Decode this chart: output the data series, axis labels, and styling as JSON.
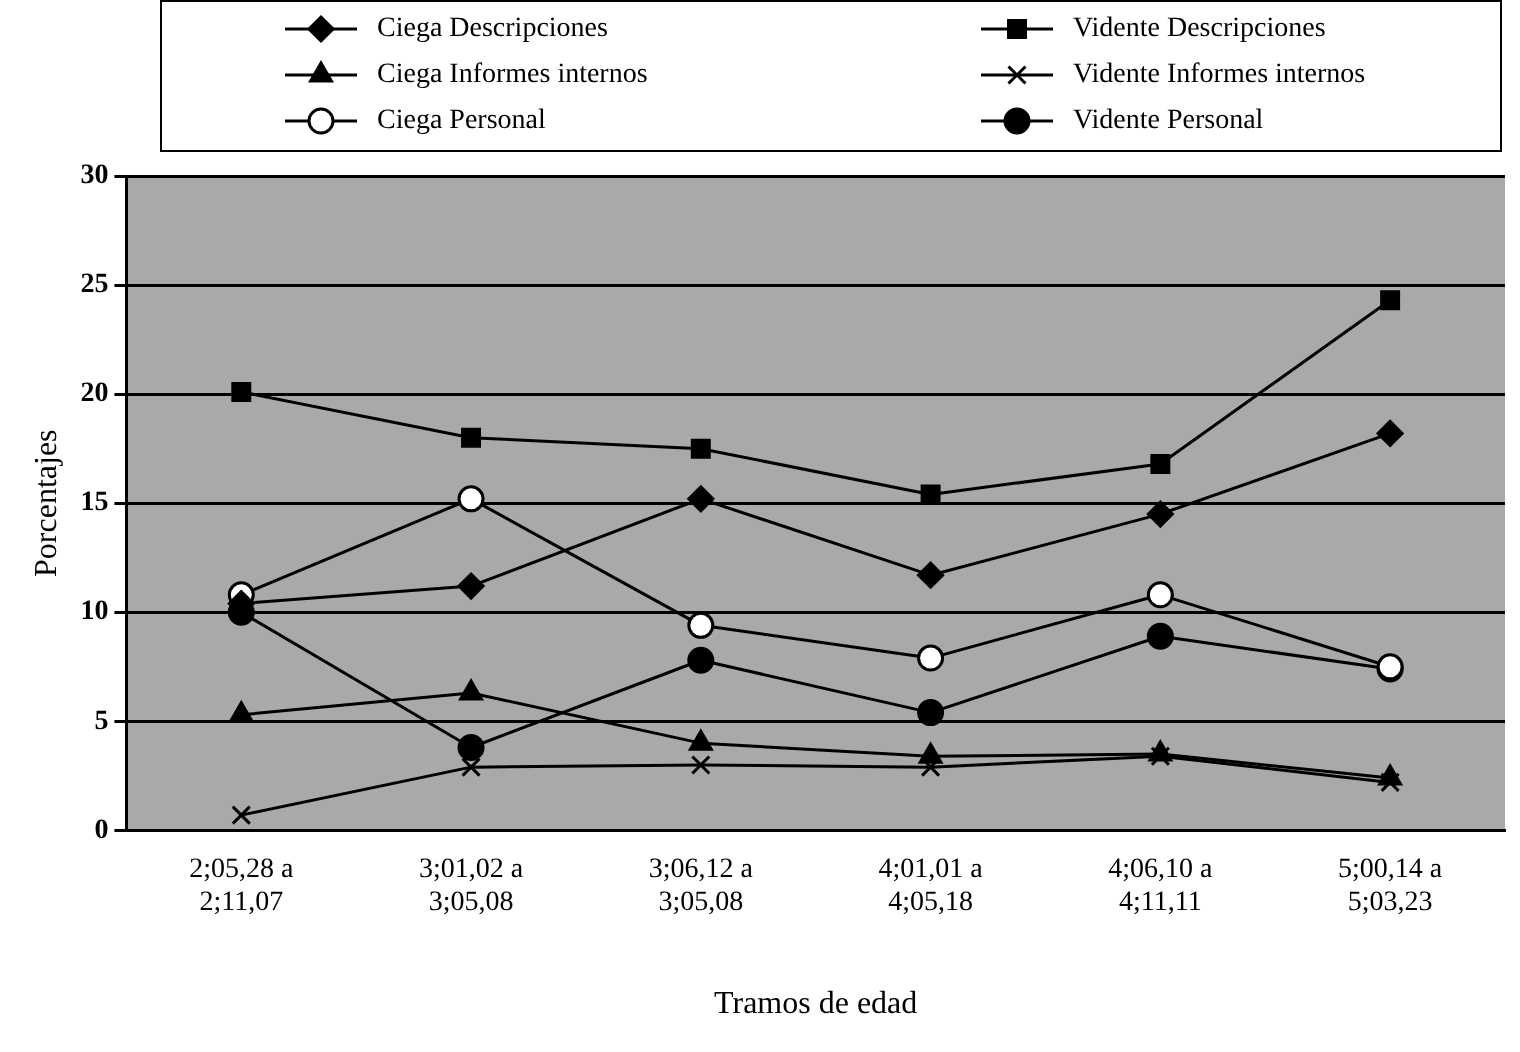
{
  "chart_data": {
    "type": "line",
    "xlabel": "Tramos de edad",
    "ylabel": "Porcentajes",
    "categories": [
      "2;05,28 a\n2;11,07",
      "3;01,02 a\n3;05,08",
      "3;06,12 a\n3;05,08",
      "4;01,01 a\n4;05,18",
      "4;06,10 a\n4;11,11",
      "5;00,14 a\n5;03,23"
    ],
    "series": [
      {
        "name": "Ciega Descripciones",
        "color": "#000000",
        "marker": "diamond",
        "values": [
          10.4,
          11.2,
          15.2,
          11.7,
          14.5,
          18.2
        ]
      },
      {
        "name": "Vidente Descripciones",
        "color": "#000000",
        "marker": "square",
        "values": [
          20.1,
          18.0,
          17.5,
          15.4,
          16.8,
          24.3
        ]
      },
      {
        "name": "Ciega Informes internos",
        "color": "#000000",
        "marker": "triangle",
        "values": [
          5.3,
          6.3,
          4.0,
          3.4,
          3.5,
          2.4
        ]
      },
      {
        "name": "Vidente Informes internos",
        "color": "#000000",
        "marker": "cross",
        "values": [
          0.7,
          2.9,
          3.0,
          2.9,
          3.4,
          2.2
        ]
      },
      {
        "name": "Ciega Personal",
        "color": "#000000",
        "marker": "circle",
        "colors": [
          "#ffffff",
          "#ffffff",
          "#ffffff",
          "#ffffff",
          "#ffffff",
          "#ffffff"
        ],
        "values": [
          10.8,
          15.2,
          9.4,
          7.9,
          10.8,
          7.5
        ]
      },
      {
        "name": "Vidente Personal",
        "color": "#000000",
        "marker": "circle",
        "values": [
          10.0,
          3.8,
          7.8,
          5.4,
          8.9,
          7.4
        ]
      }
    ],
    "ylim": [
      0,
      30
    ],
    "yticks": [
      0,
      5,
      10,
      15,
      20,
      25,
      30
    ],
    "grid": "y",
    "legend": "top",
    "line_style": "solid"
  }
}
